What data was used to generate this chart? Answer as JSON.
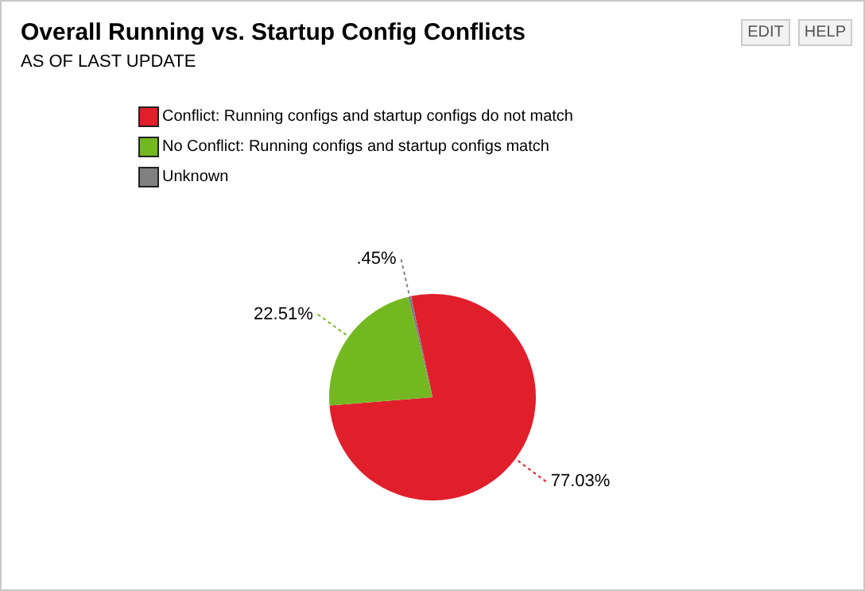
{
  "chart_data": {
    "type": "pie",
    "title": "Overall Running vs. Startup Config Conflicts",
    "subtitle": "AS OF LAST UPDATE",
    "categories": [
      "Conflict: Running configs and startup configs do not match",
      "No Conflict: Running configs and startup configs match",
      "Unknown"
    ],
    "values": [
      77.03,
      22.51,
      0.45
    ],
    "colors": [
      "#e01f2b",
      "#74b821",
      "#808080"
    ],
    "value_labels": [
      "77.03%",
      "22.51%",
      ".45%"
    ],
    "legend": "top left",
    "annotations": [
      "EDIT",
      "HELP"
    ]
  }
}
